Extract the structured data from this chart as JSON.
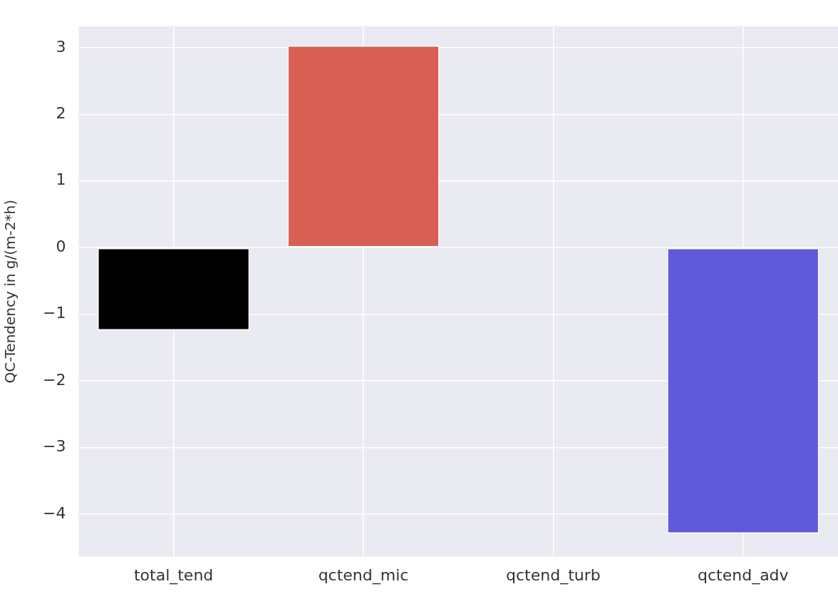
{
  "chart_data": {
    "type": "bar",
    "ylabel": "QC-Tendency in g/(m-2*h)",
    "categories": [
      "total_tend",
      "qctend_mic",
      "qctend_turb",
      "qctend_adv"
    ],
    "values": [
      -1.24,
      3.03,
      0,
      -4.29
    ],
    "colors": [
      "#000000",
      "#d95f55",
      "#6a6a6a",
      "#6159dc"
    ],
    "ylim": [
      -4.64,
      3.32
    ],
    "yticks": [
      {
        "value": -4,
        "label": "−4"
      },
      {
        "value": -3,
        "label": "−3"
      },
      {
        "value": -2,
        "label": "−2"
      },
      {
        "value": -1,
        "label": "−1"
      },
      0,
      1,
      2,
      3
    ],
    "grid": true,
    "legend": false
  }
}
